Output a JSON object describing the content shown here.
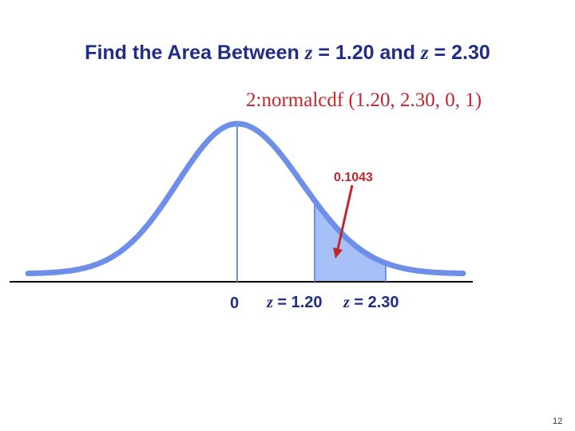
{
  "slide": {
    "title": {
      "prefix": "Find the Area Between ",
      "var1": "z",
      "eq1": " = 1.20  and ",
      "var2": "z",
      "eq2": " = 2.30"
    },
    "command": "2:normalcdf (1.20, 2.30, 0, 1)",
    "page_number": "12"
  },
  "diagram": {
    "mean": 0,
    "lower_z": 1.2,
    "upper_z": 2.3,
    "z_range": [
      -3.5,
      3.5
    ],
    "area_label": "0.1043",
    "ticks": {
      "zero": "0",
      "lower": {
        "var": "z",
        "text": " = 1.20"
      },
      "upper": {
        "var": "z",
        "text": " = 2.30"
      }
    },
    "colors": {
      "curve": "#6d8fe8",
      "shaded": "#a8c0f8",
      "arrow": "#c0272d",
      "axis": "#000000",
      "text": "#1f2d86"
    }
  }
}
